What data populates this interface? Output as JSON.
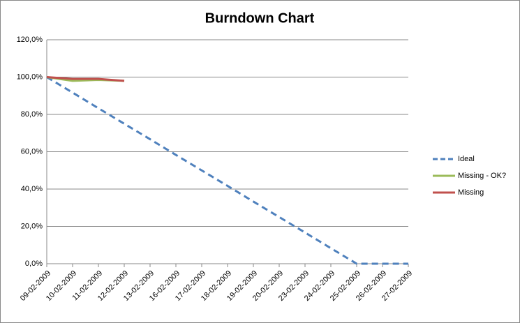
{
  "chart_data": {
    "type": "line",
    "title": "Burndown Chart",
    "categories": [
      "09-02-2009",
      "10-02-2009",
      "11-02-2009",
      "12-02-2009",
      "13-02-2009",
      "16-02-2009",
      "17-02-2009",
      "18-02-2009",
      "19-02-2009",
      "20-02-2009",
      "23-02-2009",
      "24-02-2009",
      "25-02-2009",
      "26-02-2009",
      "27-02-2009"
    ],
    "series": [
      {
        "name": "Ideal",
        "color": "#4f81bd",
        "dash": "dashed",
        "values": [
          100,
          91.7,
          83.3,
          75,
          66.7,
          58.3,
          50,
          41.7,
          33.3,
          25,
          16.7,
          8.3,
          0,
          0,
          0
        ]
      },
      {
        "name": "Missing - OK?",
        "color": "#9bbb59",
        "dash": "solid",
        "values": [
          100,
          98,
          98.5,
          98,
          null,
          null,
          null,
          null,
          null,
          null,
          null,
          null,
          null,
          null,
          null
        ]
      },
      {
        "name": "Missing",
        "color": "#c0504d",
        "dash": "solid",
        "values": [
          100,
          99,
          99,
          98,
          null,
          null,
          null,
          null,
          null,
          null,
          null,
          null,
          null,
          null,
          null
        ]
      }
    ],
    "ylim": [
      0,
      120
    ],
    "yticks": [
      {
        "value": 0,
        "label": "0,0%"
      },
      {
        "value": 20,
        "label": "20,0%"
      },
      {
        "value": 40,
        "label": "40,0%"
      },
      {
        "value": 60,
        "label": "60,0%"
      },
      {
        "value": 80,
        "label": "80,0%"
      },
      {
        "value": 100,
        "label": "100,0%"
      },
      {
        "value": 120,
        "label": "120,0%"
      }
    ],
    "grid": true,
    "legend": "right"
  }
}
